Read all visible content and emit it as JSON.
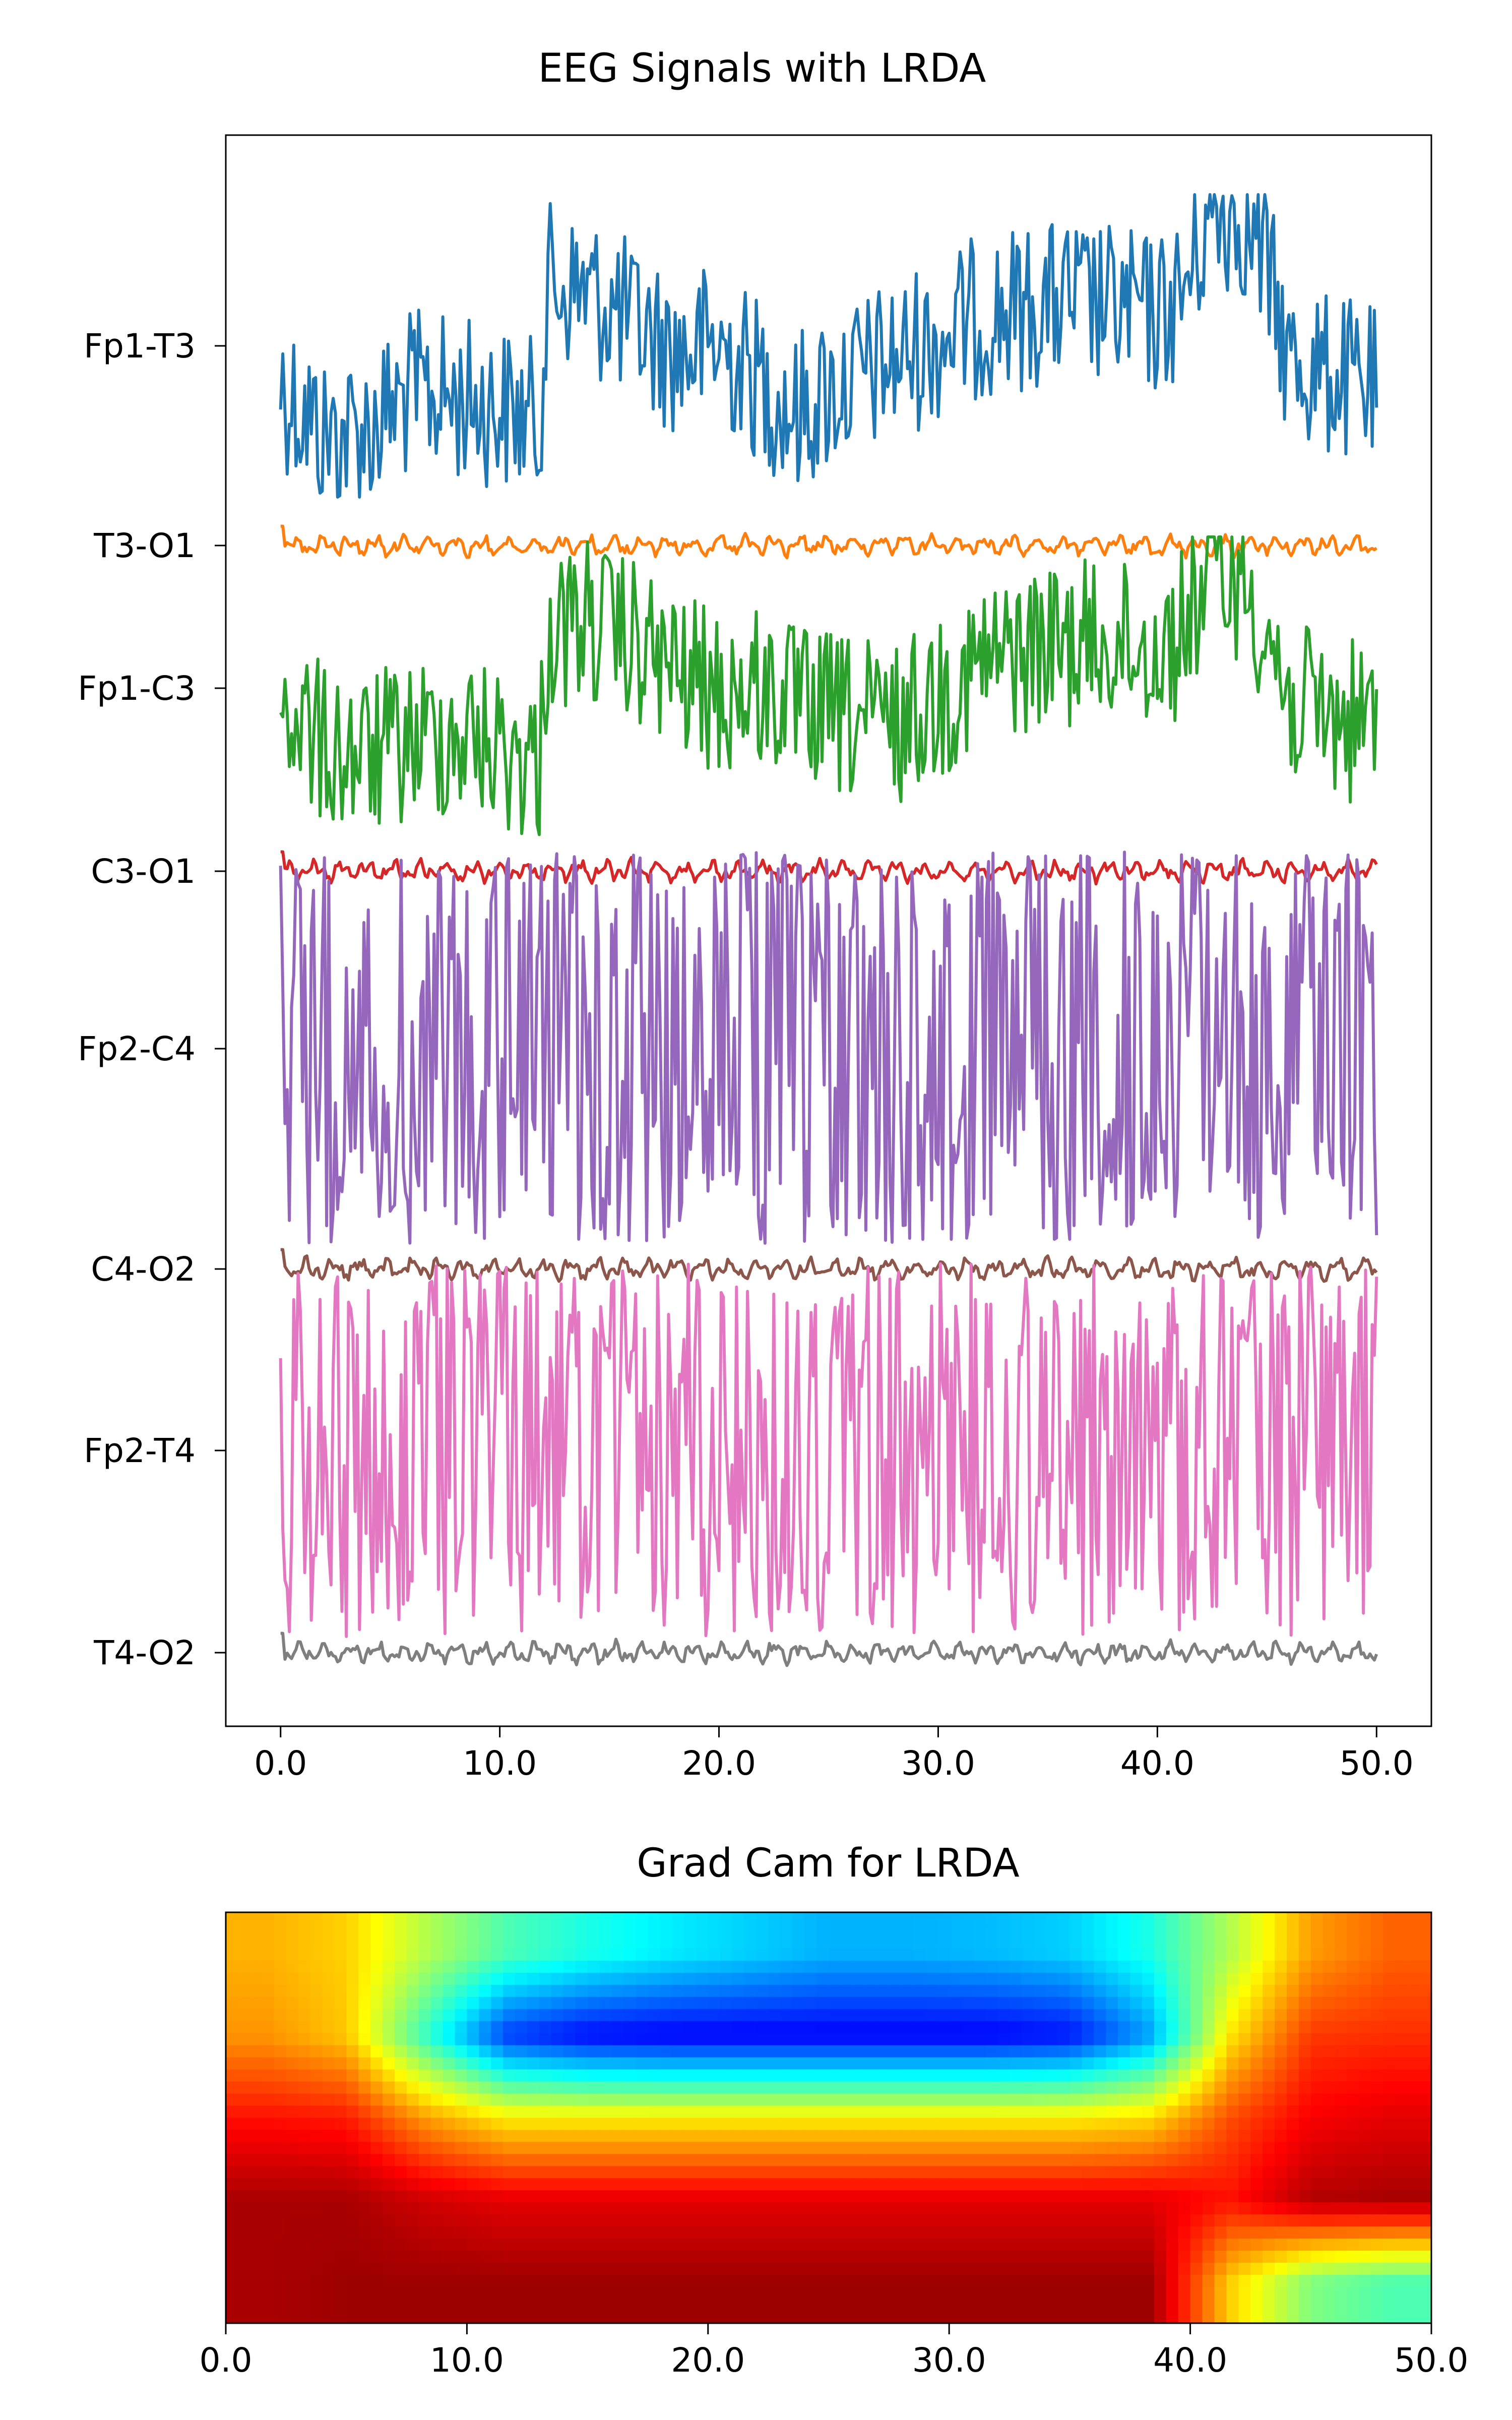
{
  "chart_data": [
    {
      "type": "line",
      "title": "EEG Signals with LRDA",
      "xlabel": "",
      "ylabel": "",
      "xlim": [
        -2.5,
        52.5
      ],
      "xticks": [
        "0.0",
        "10.0",
        "20.0",
        "30.0",
        "40.0",
        "50.0"
      ],
      "grid": false,
      "legend": "none",
      "series": [
        {
          "name": "Fp1-T3",
          "color": "#1f77b4",
          "kind": "high",
          "amp": 1.0,
          "x": [
            0,
            2,
            4,
            6,
            8,
            10,
            11.8,
            12.2,
            14,
            16,
            18,
            20,
            22,
            23.5,
            25,
            28,
            30,
            32,
            34,
            36,
            38,
            40,
            41,
            42.5,
            44,
            45,
            46,
            48,
            50
          ],
          "y": [
            0.25,
            0.6,
            0.55,
            0.3,
            0.35,
            0.4,
            0.5,
            -0.4,
            -0.35,
            -0.15,
            0.05,
            0.0,
            0.25,
            0.45,
            0.3,
            0.1,
            -0.05,
            -0.2,
            -0.25,
            -0.3,
            -0.25,
            -0.2,
            -0.3,
            -0.9,
            -0.85,
            -0.5,
            0.1,
            0.2,
            0.3
          ]
        },
        {
          "name": "T3-O1",
          "color": "#ff7f0e",
          "kind": "low",
          "amp": 1.0,
          "x": [],
          "y": []
        },
        {
          "name": "Fp1-C3",
          "color": "#2ca02c",
          "kind": "high",
          "amp": 1.0,
          "x": [
            0,
            2,
            4,
            6,
            8,
            10,
            11.8,
            12.2,
            14,
            16,
            18,
            20,
            22,
            24,
            26,
            28,
            30,
            32,
            34,
            36,
            38,
            40,
            41,
            42.5,
            44,
            45,
            46,
            48,
            50
          ],
          "y": [
            0.1,
            0.4,
            0.45,
            0.35,
            0.3,
            0.4,
            0.5,
            -0.35,
            -0.45,
            -0.3,
            -0.1,
            0.05,
            0.0,
            0.15,
            0.2,
            0.25,
            0.05,
            -0.15,
            -0.25,
            -0.3,
            -0.3,
            -0.25,
            -0.35,
            -0.8,
            -0.7,
            -0.4,
            0.1,
            0.2,
            0.25
          ]
        },
        {
          "name": "C3-O1",
          "color": "#d62728",
          "kind": "low",
          "amp": 1.0,
          "x": [],
          "y": []
        },
        {
          "name": "Fp2-C4",
          "color": "#9467bd",
          "kind": "osc",
          "amp": 1.0,
          "x": [],
          "y": []
        },
        {
          "name": "C4-O2",
          "color": "#8c564b",
          "kind": "low",
          "amp": 1.0,
          "x": [],
          "y": []
        },
        {
          "name": "Fp2-T4",
          "color": "#e377c2",
          "kind": "osc",
          "amp": 0.95,
          "x": [],
          "y": []
        },
        {
          "name": "T4-O2",
          "color": "#7f7f7f",
          "kind": "low",
          "amp": 1.0,
          "x": [],
          "y": []
        }
      ]
    },
    {
      "type": "heatmap",
      "title": "Grad Cam for LRDA",
      "xlabel": "",
      "ylabel": "",
      "xlim": [
        0,
        50
      ],
      "xticks": [
        "0.0",
        "10.0",
        "20.0",
        "30.0",
        "40.0",
        "50.0"
      ],
      "colormap": "jet",
      "rows": 5,
      "cols": 15,
      "grid": false,
      "z": [
        [
          0.7,
          0.67,
          0.55,
          0.45,
          0.4,
          0.36,
          0.33,
          0.3,
          0.3,
          0.31,
          0.33,
          0.4,
          0.55,
          0.72,
          0.78
        ],
        [
          0.73,
          0.68,
          0.42,
          0.18,
          0.13,
          0.12,
          0.12,
          0.12,
          0.12,
          0.12,
          0.14,
          0.28,
          0.65,
          0.82,
          0.83
        ],
        [
          0.86,
          0.85,
          0.72,
          0.64,
          0.64,
          0.64,
          0.64,
          0.64,
          0.64,
          0.64,
          0.64,
          0.66,
          0.8,
          0.88,
          0.9
        ],
        [
          0.96,
          0.96,
          0.92,
          0.9,
          0.9,
          0.9,
          0.9,
          0.9,
          0.9,
          0.9,
          0.9,
          0.9,
          0.86,
          0.95,
          0.96
        ],
        [
          0.96,
          0.97,
          0.97,
          0.97,
          0.97,
          0.97,
          0.97,
          0.97,
          0.97,
          0.97,
          0.97,
          0.97,
          0.67,
          0.5,
          0.45
        ]
      ]
    }
  ]
}
